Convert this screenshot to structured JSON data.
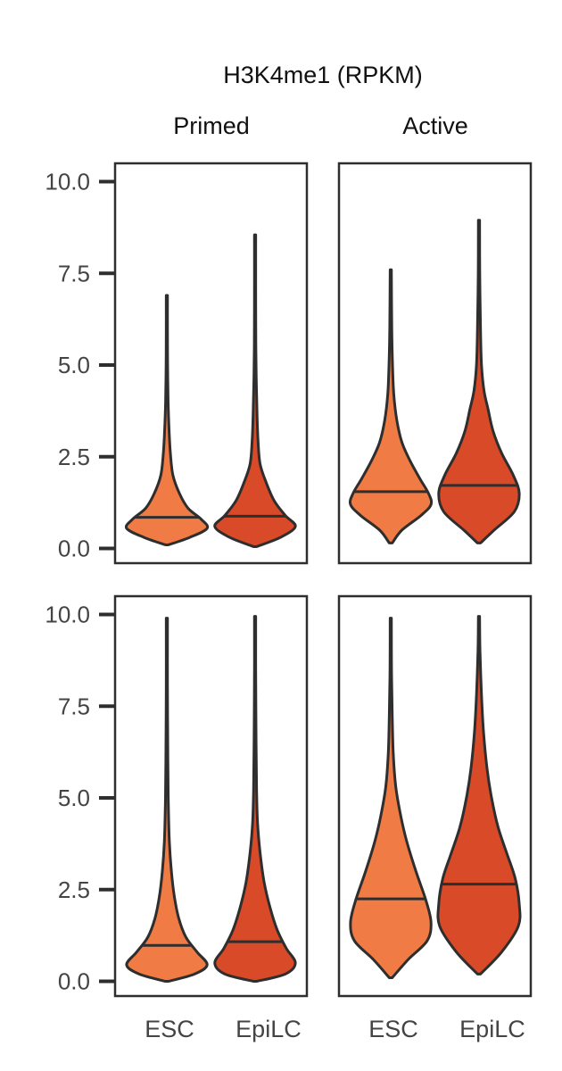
{
  "figure": {
    "title": "H3K4me1 (RPKM)",
    "columns": [
      "Primed",
      "Active"
    ]
  },
  "colors": {
    "ESC": "#f07b45",
    "EpiLC": "#d84a28",
    "outline": "#2e2e2e",
    "axis": "#2e2e2e",
    "tick_label": "#444444"
  },
  "chart_data": [
    {
      "type": "violin",
      "panel": "top-left",
      "column": "Primed",
      "categories": [
        "ESC",
        "EpiLC"
      ],
      "ylim": [
        -0.4,
        10.5
      ],
      "yticks": [
        "0.0",
        "2.5",
        "5.0",
        "7.5",
        "10.0"
      ],
      "show_yticks": true,
      "show_xticks": false,
      "violins": [
        {
          "category": "ESC",
          "min": 0.1,
          "max": 6.9,
          "median": 0.85,
          "profile": [
            [
              0.1,
              0.03
            ],
            [
              0.3,
              0.45
            ],
            [
              0.55,
              0.8
            ],
            [
              0.8,
              0.68
            ],
            [
              1.1,
              0.42
            ],
            [
              1.5,
              0.25
            ],
            [
              2.0,
              0.12
            ],
            [
              2.6,
              0.07
            ],
            [
              3.2,
              0.045
            ],
            [
              4.0,
              0.025
            ],
            [
              5.0,
              0.015
            ],
            [
              6.0,
              0.012
            ],
            [
              6.9,
              0.012
            ]
          ]
        },
        {
          "category": "EpiLC",
          "min": 0.05,
          "max": 8.55,
          "median": 0.88,
          "profile": [
            [
              0.05,
              0.03
            ],
            [
              0.3,
              0.5
            ],
            [
              0.6,
              0.8
            ],
            [
              0.9,
              0.6
            ],
            [
              1.3,
              0.38
            ],
            [
              1.8,
              0.22
            ],
            [
              2.3,
              0.1
            ],
            [
              2.9,
              0.06
            ],
            [
              3.6,
              0.04
            ],
            [
              4.5,
              0.025
            ],
            [
              5.5,
              0.015
            ],
            [
              7.0,
              0.012
            ],
            [
              8.55,
              0.012
            ]
          ]
        }
      ]
    },
    {
      "type": "violin",
      "panel": "top-right",
      "column": "Active",
      "categories": [
        "ESC",
        "EpiLC"
      ],
      "ylim": [
        -0.4,
        10.5
      ],
      "yticks": [
        "0.0",
        "2.5",
        "5.0",
        "7.5",
        "10.0"
      ],
      "show_yticks": false,
      "show_xticks": false,
      "violins": [
        {
          "category": "ESC",
          "min": 0.15,
          "max": 7.6,
          "median": 1.55,
          "profile": [
            [
              0.15,
              0.03
            ],
            [
              0.5,
              0.22
            ],
            [
              0.9,
              0.6
            ],
            [
              1.2,
              0.8
            ],
            [
              1.5,
              0.75
            ],
            [
              1.9,
              0.58
            ],
            [
              2.4,
              0.38
            ],
            [
              2.9,
              0.22
            ],
            [
              3.5,
              0.12
            ],
            [
              4.2,
              0.06
            ],
            [
              5.0,
              0.035
            ],
            [
              6.0,
              0.02
            ],
            [
              7.6,
              0.012
            ]
          ]
        },
        {
          "category": "EpiLC",
          "min": 0.15,
          "max": 8.95,
          "median": 1.72,
          "profile": [
            [
              0.15,
              0.03
            ],
            [
              0.5,
              0.3
            ],
            [
              1.0,
              0.7
            ],
            [
              1.5,
              0.8
            ],
            [
              2.0,
              0.68
            ],
            [
              2.6,
              0.45
            ],
            [
              3.2,
              0.28
            ],
            [
              3.8,
              0.18
            ],
            [
              4.3,
              0.1
            ],
            [
              5.0,
              0.05
            ],
            [
              6.0,
              0.03
            ],
            [
              7.5,
              0.015
            ],
            [
              8.95,
              0.012
            ]
          ]
        }
      ]
    },
    {
      "type": "violin",
      "panel": "bottom-left",
      "column": "Primed",
      "categories": [
        "ESC",
        "EpiLC"
      ],
      "ylim": [
        -0.4,
        10.5
      ],
      "yticks": [
        "0.0",
        "2.5",
        "5.0",
        "7.5",
        "10.0"
      ],
      "show_yticks": true,
      "show_xticks": true,
      "violins": [
        {
          "category": "ESC",
          "min": 0.0,
          "max": 9.9,
          "median": 0.98,
          "profile": [
            [
              0.0,
              0.03
            ],
            [
              0.2,
              0.55
            ],
            [
              0.45,
              0.8
            ],
            [
              0.8,
              0.6
            ],
            [
              1.2,
              0.38
            ],
            [
              1.7,
              0.24
            ],
            [
              2.3,
              0.15
            ],
            [
              3.0,
              0.09
            ],
            [
              3.8,
              0.05
            ],
            [
              4.8,
              0.03
            ],
            [
              6.0,
              0.02
            ],
            [
              8.0,
              0.012
            ],
            [
              9.9,
              0.012
            ]
          ]
        },
        {
          "category": "EpiLC",
          "min": 0.0,
          "max": 9.95,
          "median": 1.08,
          "profile": [
            [
              0.0,
              0.03
            ],
            [
              0.2,
              0.6
            ],
            [
              0.5,
              0.8
            ],
            [
              0.9,
              0.62
            ],
            [
              1.4,
              0.44
            ],
            [
              2.0,
              0.3
            ],
            [
              2.7,
              0.18
            ],
            [
              3.5,
              0.1
            ],
            [
              4.3,
              0.05
            ],
            [
              5.2,
              0.03
            ],
            [
              6.5,
              0.02
            ],
            [
              8.5,
              0.012
            ],
            [
              9.95,
              0.012
            ]
          ]
        }
      ]
    },
    {
      "type": "violin",
      "panel": "bottom-right",
      "column": "Active",
      "categories": [
        "ESC",
        "EpiLC"
      ],
      "ylim": [
        -0.4,
        10.5
      ],
      "yticks": [
        "0.0",
        "2.5",
        "5.0",
        "7.5",
        "10.0"
      ],
      "show_yticks": false,
      "show_xticks": true,
      "violins": [
        {
          "category": "ESC",
          "min": 0.1,
          "max": 9.9,
          "median": 2.25,
          "profile": [
            [
              0.1,
              0.03
            ],
            [
              0.6,
              0.35
            ],
            [
              1.1,
              0.72
            ],
            [
              1.6,
              0.8
            ],
            [
              2.2,
              0.7
            ],
            [
              3.0,
              0.5
            ],
            [
              3.8,
              0.32
            ],
            [
              4.5,
              0.2
            ],
            [
              5.3,
              0.1
            ],
            [
              6.2,
              0.05
            ],
            [
              7.2,
              0.03
            ],
            [
              8.5,
              0.015
            ],
            [
              9.9,
              0.012
            ]
          ]
        },
        {
          "category": "EpiLC",
          "min": 0.2,
          "max": 9.95,
          "median": 2.65,
          "profile": [
            [
              0.2,
              0.03
            ],
            [
              0.8,
              0.45
            ],
            [
              1.5,
              0.78
            ],
            [
              2.1,
              0.8
            ],
            [
              2.8,
              0.72
            ],
            [
              3.5,
              0.55
            ],
            [
              4.2,
              0.38
            ],
            [
              5.0,
              0.25
            ],
            [
              5.8,
              0.16
            ],
            [
              6.8,
              0.09
            ],
            [
              7.8,
              0.05
            ],
            [
              9.0,
              0.02
            ],
            [
              9.95,
              0.012
            ]
          ]
        }
      ]
    }
  ]
}
